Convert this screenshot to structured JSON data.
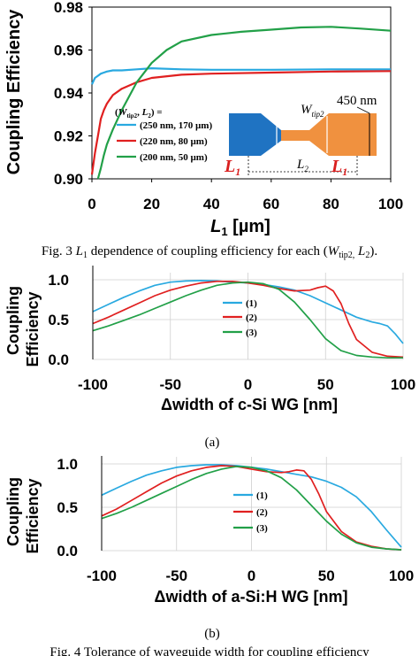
{
  "chart_data": [
    {
      "type": "line",
      "ylabel": "Coupling Efficiency",
      "xlabel_main": "L",
      "xlabel_sub": "1",
      "xlabel_unit": " [µm]",
      "xlim": [
        0,
        100
      ],
      "ylim": [
        0.9,
        0.98
      ],
      "xticks": [
        0,
        20,
        40,
        60,
        80,
        100
      ],
      "yticks": [
        0.9,
        0.92,
        0.94,
        0.96,
        0.98
      ],
      "ytick_labels": [
        "0.90",
        "0.92",
        "0.94",
        "0.96",
        "0.98"
      ],
      "legend_header": "(W, L) =",
      "series": [
        {
          "name": "(250 nm,  170 µm)",
          "color": "#29a9e0",
          "x": [
            0,
            1,
            2,
            3,
            4,
            5,
            7,
            10,
            15,
            20,
            30,
            40,
            60,
            80,
            100
          ],
          "y": [
            0.944,
            0.947,
            0.948,
            0.949,
            0.9495,
            0.95,
            0.9505,
            0.9505,
            0.951,
            0.9515,
            0.951,
            0.9508,
            0.9508,
            0.951,
            0.951
          ]
        },
        {
          "name": "(220 nm,  80 µm)",
          "color": "#e02020",
          "x": [
            0,
            1,
            2,
            3,
            4,
            5,
            7,
            10,
            15,
            20,
            30,
            40,
            60,
            80,
            100
          ],
          "y": [
            0.902,
            0.912,
            0.92,
            0.928,
            0.932,
            0.935,
            0.939,
            0.942,
            0.945,
            0.947,
            0.9485,
            0.949,
            0.9495,
            0.95,
            0.9502
          ]
        },
        {
          "name": "(200 nm,  50 µm)",
          "color": "#22a048",
          "x": [
            2,
            3,
            4,
            5,
            7,
            10,
            15,
            20,
            25,
            30,
            40,
            50,
            60,
            70,
            80,
            90,
            100
          ],
          "y": [
            0.9,
            0.905,
            0.911,
            0.916,
            0.923,
            0.932,
            0.945,
            0.954,
            0.96,
            0.964,
            0.967,
            0.9685,
            0.9695,
            0.9705,
            0.9708,
            0.97,
            0.969
          ]
        }
      ],
      "inset_labels": {
        "w": "W",
        "w_sub": "tip2",
        "nm": "450 nm",
        "l1": "L",
        "l1_sub": "1",
        "l2": "L",
        "l2_sub": "2"
      },
      "caption": {
        "pre": "Fig. 3 ",
        "l": "L",
        "l_sub": "1",
        "mid": " dependence of coupling efficiency for each (",
        "w": "W",
        "w_sub": "tip2,",
        "l2": " L",
        "l2_sub": "2",
        "end": ")."
      }
    },
    {
      "type": "line",
      "ylabel_line1": "Coupling",
      "ylabel_line2": "Efficiency",
      "xlabel": "Δwidth of c-Si WG [nm]",
      "xlim": [
        -100,
        100
      ],
      "ylim": [
        0,
        1
      ],
      "xticks": [
        -100,
        -50,
        0,
        50,
        100
      ],
      "yticks": [
        0,
        0.5,
        1
      ],
      "ytick_labels": [
        "0.0",
        "0.5",
        "1.0"
      ],
      "series": [
        {
          "name": "(1)",
          "color": "#29a9e0",
          "x": [
            -100,
            -90,
            -80,
            -70,
            -60,
            -50,
            -40,
            -30,
            -20,
            -10,
            0,
            10,
            20,
            30,
            40,
            50,
            60,
            70,
            80,
            85,
            90,
            95,
            100
          ],
          "y": [
            0.6,
            0.69,
            0.78,
            0.86,
            0.93,
            0.97,
            0.985,
            0.99,
            0.985,
            0.97,
            0.96,
            0.94,
            0.91,
            0.87,
            0.8,
            0.71,
            0.62,
            0.53,
            0.47,
            0.45,
            0.42,
            0.32,
            0.2
          ]
        },
        {
          "name": "(2)",
          "color": "#e02020",
          "x": [
            -100,
            -90,
            -80,
            -70,
            -60,
            -50,
            -40,
            -30,
            -20,
            -10,
            0,
            10,
            20,
            30,
            40,
            45,
            50,
            55,
            60,
            65,
            70,
            80,
            90,
            100
          ],
          "y": [
            0.45,
            0.53,
            0.62,
            0.71,
            0.8,
            0.87,
            0.92,
            0.96,
            0.98,
            0.98,
            0.96,
            0.93,
            0.89,
            0.86,
            0.87,
            0.9,
            0.92,
            0.86,
            0.7,
            0.45,
            0.25,
            0.09,
            0.04,
            0.03
          ]
        },
        {
          "name": "(3)",
          "color": "#22a048",
          "x": [
            -100,
            -90,
            -80,
            -70,
            -60,
            -50,
            -40,
            -30,
            -20,
            -10,
            0,
            10,
            20,
            30,
            40,
            50,
            60,
            70,
            80,
            90,
            100
          ],
          "y": [
            0.36,
            0.42,
            0.49,
            0.56,
            0.64,
            0.72,
            0.8,
            0.87,
            0.93,
            0.96,
            0.97,
            0.95,
            0.88,
            0.72,
            0.5,
            0.26,
            0.11,
            0.05,
            0.03,
            0.02,
            0.02
          ]
        }
      ],
      "caption": "(a)"
    },
    {
      "type": "line",
      "ylabel_line1": "Coupling",
      "ylabel_line2": "Efficiency",
      "xlabel": "Δwidth of a-Si:H WG [nm]",
      "xlim": [
        -100,
        100
      ],
      "ylim": [
        0,
        1
      ],
      "xticks": [
        -100,
        -50,
        0,
        50,
        100
      ],
      "yticks": [
        0,
        0.5,
        1
      ],
      "ytick_labels": [
        "0.0",
        "0.5",
        "1.0"
      ],
      "series": [
        {
          "name": "(1)",
          "color": "#29a9e0",
          "x": [
            -100,
            -90,
            -80,
            -70,
            -60,
            -50,
            -40,
            -30,
            -20,
            -10,
            0,
            10,
            20,
            30,
            40,
            50,
            60,
            70,
            80,
            90,
            100
          ],
          "y": [
            0.64,
            0.72,
            0.8,
            0.87,
            0.92,
            0.96,
            0.98,
            0.99,
            0.99,
            0.98,
            0.96,
            0.94,
            0.91,
            0.88,
            0.85,
            0.8,
            0.73,
            0.62,
            0.45,
            0.24,
            0.04
          ]
        },
        {
          "name": "(2)",
          "color": "#e02020",
          "x": [
            -100,
            -90,
            -80,
            -70,
            -60,
            -50,
            -40,
            -30,
            -20,
            -10,
            0,
            10,
            20,
            25,
            30,
            35,
            40,
            45,
            50,
            60,
            70,
            80,
            90,
            100
          ],
          "y": [
            0.4,
            0.48,
            0.58,
            0.68,
            0.78,
            0.86,
            0.92,
            0.96,
            0.98,
            0.97,
            0.94,
            0.91,
            0.9,
            0.91,
            0.93,
            0.92,
            0.82,
            0.65,
            0.45,
            0.22,
            0.1,
            0.05,
            0.02,
            0.01
          ]
        },
        {
          "name": "(3)",
          "color": "#22a048",
          "x": [
            -100,
            -90,
            -80,
            -70,
            -60,
            -50,
            -40,
            -30,
            -20,
            -10,
            0,
            10,
            20,
            30,
            40,
            50,
            60,
            70,
            80,
            90,
            100
          ],
          "y": [
            0.37,
            0.43,
            0.5,
            0.58,
            0.66,
            0.74,
            0.82,
            0.89,
            0.94,
            0.97,
            0.96,
            0.92,
            0.84,
            0.7,
            0.52,
            0.34,
            0.19,
            0.09,
            0.04,
            0.02,
            0.01
          ]
        }
      ],
      "caption": "(b)"
    }
  ],
  "footer_caption": "Fig. 4 Tolerance of waveguide width for coupling efficiency"
}
